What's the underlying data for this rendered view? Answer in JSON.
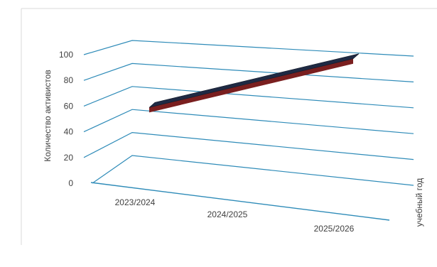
{
  "chart_data": {
    "type": "line",
    "style": "3d",
    "categories": [
      "2023/2024",
      "2024/2025",
      "2025/2026"
    ],
    "series": [
      {
        "values": [
          52,
          72,
          92
        ]
      }
    ],
    "ylim": [
      0,
      100
    ],
    "yticks": [
      0,
      20,
      40,
      60,
      80,
      100
    ],
    "ylabel": "Количество активистов",
    "xlabel": "учебный год",
    "grid": true,
    "legend": "none",
    "colors": {
      "grid": "#2E8BB8",
      "axis": "#2E8BB8",
      "line_top": "#1F2A44",
      "line_side": "#7A1F1F",
      "frame": "#D9D9D9"
    }
  }
}
